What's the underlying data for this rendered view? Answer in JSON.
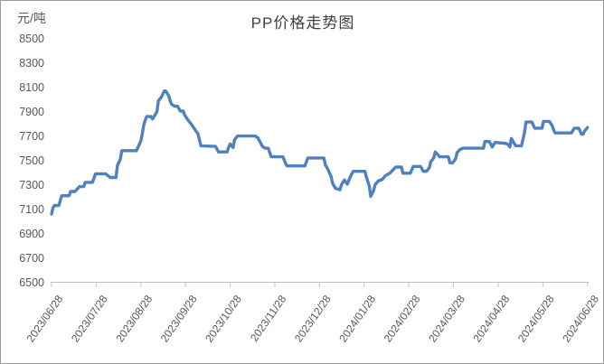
{
  "chart_data": {
    "type": "line",
    "title": "PP价格走势图",
    "ylabel": "元/吨",
    "xlabel": "",
    "grid": false,
    "legend": "none",
    "ylim": [
      6500,
      8500
    ],
    "y_tick_step": 200,
    "y_tick_labels": [
      "8500",
      "8300",
      "8100",
      "7900",
      "7700",
      "7500",
      "7300",
      "7100",
      "6900",
      "6700",
      "6500"
    ],
    "x_tick_labels": [
      "2023/06/28",
      "2023/07/28",
      "2023/08/28",
      "2023/09/28",
      "2023/10/28",
      "2023/11/28",
      "2023/12/28",
      "2024/01/28",
      "2024/02/28",
      "2024/03/28",
      "2024/04/28",
      "2024/05/28",
      "2024/06/28"
    ],
    "x_range": [
      "2023-06-28",
      "2024-06-28"
    ],
    "line_color": "#4e81bd",
    "axis_color": "#bfbfbf",
    "label_color": "#595959",
    "title_color": "#404040",
    "points": [
      [
        "2023-06-28",
        7060
      ],
      [
        "2023-06-29",
        7110
      ],
      [
        "2023-06-30",
        7130
      ],
      [
        "2023-07-03",
        7130
      ],
      [
        "2023-07-05",
        7210
      ],
      [
        "2023-07-10",
        7210
      ],
      [
        "2023-07-11",
        7245
      ],
      [
        "2023-07-14",
        7245
      ],
      [
        "2023-07-17",
        7285
      ],
      [
        "2023-07-20",
        7285
      ],
      [
        "2023-07-21",
        7320
      ],
      [
        "2023-07-26",
        7320
      ],
      [
        "2023-07-28",
        7390
      ],
      [
        "2023-08-04",
        7390
      ],
      [
        "2023-08-07",
        7360
      ],
      [
        "2023-08-11",
        7360
      ],
      [
        "2023-08-12",
        7460
      ],
      [
        "2023-08-14",
        7510
      ],
      [
        "2023-08-15",
        7580
      ],
      [
        "2023-08-25",
        7580
      ],
      [
        "2023-08-28",
        7660
      ],
      [
        "2023-08-29",
        7720
      ],
      [
        "2023-08-30",
        7790
      ],
      [
        "2023-08-31",
        7830
      ],
      [
        "2023-09-01",
        7860
      ],
      [
        "2023-09-04",
        7860
      ],
      [
        "2023-09-05",
        7840
      ],
      [
        "2023-09-06",
        7860
      ],
      [
        "2023-09-08",
        7900
      ],
      [
        "2023-09-09",
        7990
      ],
      [
        "2023-09-11",
        8020
      ],
      [
        "2023-09-12",
        8045
      ],
      [
        "2023-09-13",
        8070
      ],
      [
        "2023-09-14",
        8070
      ],
      [
        "2023-09-16",
        8030
      ],
      [
        "2023-09-17",
        7990
      ],
      [
        "2023-09-18",
        7960
      ],
      [
        "2023-09-20",
        7945
      ],
      [
        "2023-09-22",
        7945
      ],
      [
        "2023-09-24",
        7905
      ],
      [
        "2023-09-26",
        7905
      ],
      [
        "2023-09-27",
        7870
      ],
      [
        "2023-09-29",
        7835
      ],
      [
        "2023-10-01",
        7805
      ],
      [
        "2023-10-03",
        7770
      ],
      [
        "2023-10-05",
        7735
      ],
      [
        "2023-10-06",
        7720
      ],
      [
        "2023-10-08",
        7620
      ],
      [
        "2023-10-18",
        7615
      ],
      [
        "2023-10-20",
        7570
      ],
      [
        "2023-10-26",
        7570
      ],
      [
        "2023-10-27",
        7610
      ],
      [
        "2023-10-28",
        7635
      ],
      [
        "2023-10-30",
        7605
      ],
      [
        "2023-10-31",
        7670
      ],
      [
        "2023-11-02",
        7700
      ],
      [
        "2023-11-14",
        7700
      ],
      [
        "2023-11-16",
        7685
      ],
      [
        "2023-11-17",
        7660
      ],
      [
        "2023-11-19",
        7615
      ],
      [
        "2023-11-21",
        7600
      ],
      [
        "2023-11-23",
        7600
      ],
      [
        "2023-11-25",
        7530
      ],
      [
        "2023-12-03",
        7530
      ],
      [
        "2023-12-05",
        7470
      ],
      [
        "2023-12-06",
        7455
      ],
      [
        "2023-12-18",
        7455
      ],
      [
        "2023-12-20",
        7520
      ],
      [
        "2023-12-31",
        7520
      ],
      [
        "2024-01-01",
        7465
      ],
      [
        "2024-01-03",
        7420
      ],
      [
        "2024-01-05",
        7365
      ],
      [
        "2024-01-06",
        7310
      ],
      [
        "2024-01-08",
        7270
      ],
      [
        "2024-01-11",
        7260
      ],
      [
        "2024-01-12",
        7300
      ],
      [
        "2024-01-14",
        7340
      ],
      [
        "2024-01-16",
        7305
      ],
      [
        "2024-01-18",
        7365
      ],
      [
        "2024-01-20",
        7410
      ],
      [
        "2024-01-28",
        7410
      ],
      [
        "2024-01-29",
        7365
      ],
      [
        "2024-01-31",
        7290
      ],
      [
        "2024-02-01",
        7205
      ],
      [
        "2024-02-03",
        7255
      ],
      [
        "2024-02-04",
        7300
      ],
      [
        "2024-02-06",
        7330
      ],
      [
        "2024-02-09",
        7345
      ],
      [
        "2024-02-11",
        7375
      ],
      [
        "2024-02-14",
        7395
      ],
      [
        "2024-02-16",
        7420
      ],
      [
        "2024-02-18",
        7445
      ],
      [
        "2024-02-22",
        7445
      ],
      [
        "2024-02-23",
        7395
      ],
      [
        "2024-02-28",
        7395
      ],
      [
        "2024-03-01",
        7450
      ],
      [
        "2024-03-06",
        7450
      ],
      [
        "2024-03-08",
        7410
      ],
      [
        "2024-03-10",
        7410
      ],
      [
        "2024-03-12",
        7440
      ],
      [
        "2024-03-13",
        7490
      ],
      [
        "2024-03-15",
        7520
      ],
      [
        "2024-03-16",
        7570
      ],
      [
        "2024-03-18",
        7545
      ],
      [
        "2024-03-19",
        7530
      ],
      [
        "2024-03-25",
        7530
      ],
      [
        "2024-03-26",
        7480
      ],
      [
        "2024-03-28",
        7480
      ],
      [
        "2024-03-30",
        7515
      ],
      [
        "2024-03-31",
        7565
      ],
      [
        "2024-04-02",
        7590
      ],
      [
        "2024-04-04",
        7600
      ],
      [
        "2024-04-18",
        7600
      ],
      [
        "2024-04-19",
        7655
      ],
      [
        "2024-04-22",
        7655
      ],
      [
        "2024-04-24",
        7610
      ],
      [
        "2024-04-26",
        7650
      ],
      [
        "2024-04-28",
        7645
      ],
      [
        "2024-05-03",
        7640
      ],
      [
        "2024-05-05",
        7630
      ],
      [
        "2024-05-06",
        7610
      ],
      [
        "2024-05-07",
        7680
      ],
      [
        "2024-05-09",
        7640
      ],
      [
        "2024-05-10",
        7620
      ],
      [
        "2024-05-14",
        7620
      ],
      [
        "2024-05-16",
        7730
      ],
      [
        "2024-05-17",
        7815
      ],
      [
        "2024-05-21",
        7815
      ],
      [
        "2024-05-23",
        7765
      ],
      [
        "2024-05-28",
        7765
      ],
      [
        "2024-05-29",
        7820
      ],
      [
        "2024-06-02",
        7820
      ],
      [
        "2024-06-04",
        7785
      ],
      [
        "2024-06-05",
        7745
      ],
      [
        "2024-06-06",
        7725
      ],
      [
        "2024-06-17",
        7725
      ],
      [
        "2024-06-19",
        7765
      ],
      [
        "2024-06-22",
        7765
      ],
      [
        "2024-06-24",
        7715
      ],
      [
        "2024-06-25",
        7715
      ],
      [
        "2024-06-26",
        7740
      ],
      [
        "2024-06-28",
        7770
      ]
    ]
  }
}
